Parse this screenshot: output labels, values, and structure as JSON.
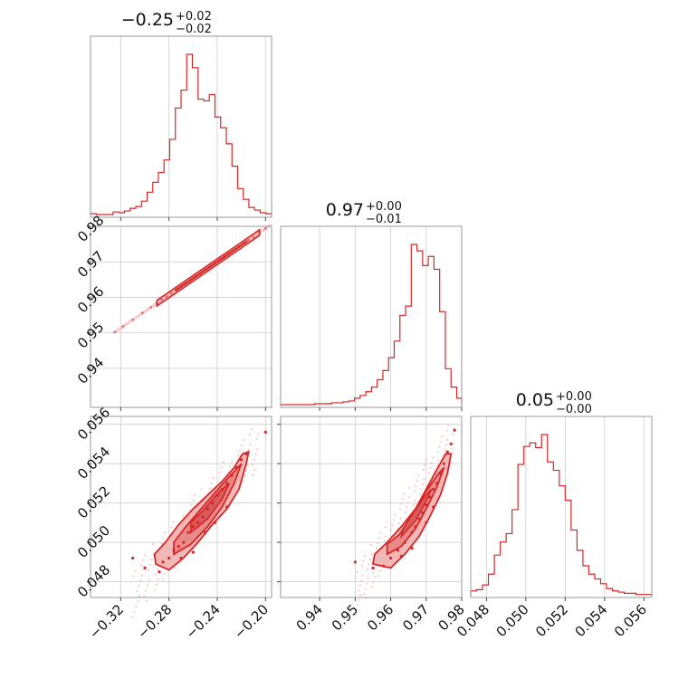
{
  "colors": {
    "accent": "#d62728",
    "scatter": "#f4a6a6",
    "fill": "#f2b8b8",
    "grid": "#cccccc",
    "frame": "#999999"
  },
  "chart_data": [
    {
      "type": "histogram",
      "panel": "0-0",
      "title": {
        "value": "−0.25",
        "plus": "+0.02",
        "minus": "−0.02"
      },
      "xlim": [
        -0.345,
        -0.195
      ],
      "bins": [
        -0.345,
        -0.3403,
        -0.3356,
        -0.3309,
        -0.3263,
        -0.3216,
        -0.3169,
        -0.3122,
        -0.3075,
        -0.3028,
        -0.2981,
        -0.2934,
        -0.2888,
        -0.2841,
        -0.2794,
        -0.2747,
        -0.27,
        -0.2653,
        -0.2606,
        -0.2559,
        -0.2513,
        -0.2466,
        -0.2419,
        -0.2372,
        -0.2325,
        -0.2278,
        -0.2231,
        -0.2184,
        -0.2138,
        -0.2091,
        -0.2044,
        -0.1997,
        -0.195
      ],
      "counts": [
        2,
        1,
        1,
        1,
        4,
        3,
        5,
        8,
        10,
        16,
        26,
        37,
        48,
        62,
        85,
        120,
        140,
        180,
        165,
        130,
        128,
        135,
        110,
        98,
        80,
        55,
        30,
        18,
        9,
        6,
        3,
        2
      ]
    },
    {
      "type": "histogram",
      "panel": "1-1",
      "title": {
        "value": "0.97",
        "plus": "+0.00",
        "minus": "−0.01"
      },
      "xlim": [
        0.929,
        0.98
      ],
      "ticks": [
        0.94,
        0.95,
        0.96,
        0.97,
        0.98
      ],
      "tick_labels": [
        "0.94",
        "0.95",
        "0.96",
        "0.97",
        "0.98"
      ],
      "bins": [
        0.929,
        0.9306,
        0.9322,
        0.9338,
        0.9354,
        0.937,
        0.9386,
        0.9402,
        0.9418,
        0.9434,
        0.945,
        0.9466,
        0.9482,
        0.9498,
        0.9514,
        0.953,
        0.9546,
        0.9562,
        0.9578,
        0.9594,
        0.961,
        0.9626,
        0.9642,
        0.9658,
        0.9674,
        0.969,
        0.9706,
        0.9722,
        0.9738,
        0.9754,
        0.977,
        0.9786,
        0.98
      ],
      "counts": [
        1,
        1,
        1,
        1,
        1,
        1,
        2,
        2,
        2,
        3,
        3,
        4,
        5,
        8,
        11,
        15,
        20,
        28,
        38,
        52,
        70,
        98,
        108,
        175,
        168,
        152,
        162,
        148,
        102,
        40,
        20,
        8
      ]
    },
    {
      "type": "histogram",
      "panel": "2-2",
      "title": {
        "value": "0.05",
        "plus": "+0.00",
        "minus": "−0.00"
      },
      "xlim": [
        0.0472,
        0.0564
      ],
      "ticks": [
        0.048,
        0.05,
        0.052,
        0.054,
        0.056
      ],
      "tick_labels": [
        "0.048",
        "0.050",
        "0.052",
        "0.054",
        "0.056"
      ],
      "bins": [
        0.0472,
        0.0475,
        0.0478,
        0.0481,
        0.0484,
        0.0487,
        0.049,
        0.0493,
        0.0496,
        0.0499,
        0.0502,
        0.0505,
        0.0508,
        0.0511,
        0.0514,
        0.0517,
        0.052,
        0.0523,
        0.0526,
        0.0529,
        0.0532,
        0.0535,
        0.0538,
        0.0541,
        0.0544,
        0.0547,
        0.055,
        0.0553,
        0.0556,
        0.0559,
        0.0562,
        0.0564
      ],
      "counts": [
        4,
        5,
        9,
        18,
        34,
        45,
        52,
        72,
        110,
        125,
        128,
        124,
        135,
        112,
        105,
        92,
        80,
        55,
        38,
        25,
        18,
        14,
        10,
        6,
        4,
        3,
        2,
        2,
        1,
        1,
        1
      ]
    },
    {
      "type": "scatter",
      "panel": "1-0",
      "xlim": [
        -0.345,
        -0.195
      ],
      "ylim": [
        0.929,
        0.98
      ],
      "yticks": [
        0.94,
        0.95,
        0.96,
        0.97,
        0.98
      ],
      "ytick_labels": [
        "0.94",
        "0.95",
        "0.96",
        "0.97",
        "0.98"
      ],
      "relation": {
        "slope": 0.234,
        "intercept": 1.0262
      },
      "points": [
        [
          -0.325,
          0.9502
        ],
        [
          -0.318,
          0.9518
        ],
        [
          -0.31,
          0.9537
        ],
        [
          -0.302,
          0.9556
        ],
        [
          -0.295,
          0.9572
        ],
        [
          -0.29,
          0.9583
        ],
        [
          -0.286,
          0.9593
        ],
        [
          -0.282,
          0.9602
        ],
        [
          -0.278,
          0.9612
        ],
        [
          -0.274,
          0.9621
        ],
        [
          -0.27,
          0.963
        ],
        [
          -0.266,
          0.964
        ],
        [
          -0.262,
          0.9649
        ],
        [
          -0.258,
          0.9658
        ],
        [
          -0.254,
          0.9667
        ],
        [
          -0.25,
          0.9677
        ],
        [
          -0.246,
          0.9686
        ],
        [
          -0.242,
          0.9696
        ],
        [
          -0.238,
          0.9705
        ],
        [
          -0.234,
          0.9714
        ],
        [
          -0.23,
          0.9724
        ],
        [
          -0.226,
          0.9733
        ],
        [
          -0.222,
          0.9743
        ],
        [
          -0.218,
          0.9752
        ],
        [
          -0.214,
          0.9761
        ],
        [
          -0.21,
          0.977
        ],
        [
          -0.205,
          0.9782
        ],
        [
          -0.2,
          0.9794
        ]
      ]
    },
    {
      "type": "scatter",
      "panel": "2-0",
      "xlim": [
        -0.345,
        -0.195
      ],
      "ylim": [
        0.0472,
        0.0564
      ],
      "xticks": [
        -0.32,
        -0.28,
        -0.24,
        -0.2
      ],
      "xtick_labels": [
        "−0.32",
        "−0.28",
        "−0.24",
        "−0.20"
      ],
      "yticks": [
        0.048,
        0.05,
        0.052,
        0.054,
        0.056
      ],
      "ytick_labels": [
        "0.048",
        "0.050",
        "0.052",
        "0.054",
        "0.056"
      ],
      "points": [
        [
          -0.288,
          0.0485
        ],
        [
          -0.285,
          0.049
        ],
        [
          -0.28,
          0.0492
        ],
        [
          -0.276,
          0.0496
        ],
        [
          -0.272,
          0.0498
        ],
        [
          -0.268,
          0.05
        ],
        [
          -0.264,
          0.0505
        ],
        [
          -0.26,
          0.0508
        ],
        [
          -0.256,
          0.051
        ],
        [
          -0.252,
          0.0513
        ],
        [
          -0.248,
          0.0517
        ],
        [
          -0.244,
          0.052
        ],
        [
          -0.24,
          0.0524
        ],
        [
          -0.236,
          0.0527
        ],
        [
          -0.232,
          0.053
        ],
        [
          -0.228,
          0.0534
        ],
        [
          -0.224,
          0.0538
        ],
        [
          -0.22,
          0.0542
        ],
        [
          -0.216,
          0.0545
        ],
        [
          -0.26,
          0.0495
        ],
        [
          -0.27,
          0.0492
        ],
        [
          -0.25,
          0.0505
        ],
        [
          -0.242,
          0.051
        ],
        [
          -0.232,
          0.0518
        ],
        [
          -0.3,
          0.0487
        ],
        [
          -0.31,
          0.0492
        ],
        [
          -0.2,
          0.0556
        ]
      ]
    },
    {
      "type": "scatter",
      "panel": "2-1",
      "xlim": [
        0.929,
        0.98
      ],
      "ylim": [
        0.0472,
        0.0564
      ],
      "xticks": [
        0.94,
        0.95,
        0.96,
        0.97,
        0.98
      ],
      "xtick_labels": [
        "0.94",
        "0.95",
        "0.96",
        "0.97",
        "0.98"
      ],
      "points": [
        [
          0.958,
          0.0488
        ],
        [
          0.96,
          0.0492
        ],
        [
          0.962,
          0.0496
        ],
        [
          0.964,
          0.05
        ],
        [
          0.966,
          0.0505
        ],
        [
          0.967,
          0.0508
        ],
        [
          0.968,
          0.0512
        ],
        [
          0.969,
          0.0515
        ],
        [
          0.97,
          0.0519
        ],
        [
          0.971,
          0.0523
        ],
        [
          0.972,
          0.0527
        ],
        [
          0.973,
          0.053
        ],
        [
          0.974,
          0.0535
        ],
        [
          0.975,
          0.054
        ],
        [
          0.976,
          0.0546
        ],
        [
          0.977,
          0.055
        ],
        [
          0.966,
          0.0497
        ],
        [
          0.963,
          0.0493
        ],
        [
          0.97,
          0.051
        ],
        [
          0.972,
          0.0518
        ],
        [
          0.955,
          0.0487
        ],
        [
          0.95,
          0.049
        ],
        [
          0.978,
          0.0557
        ]
      ]
    }
  ]
}
